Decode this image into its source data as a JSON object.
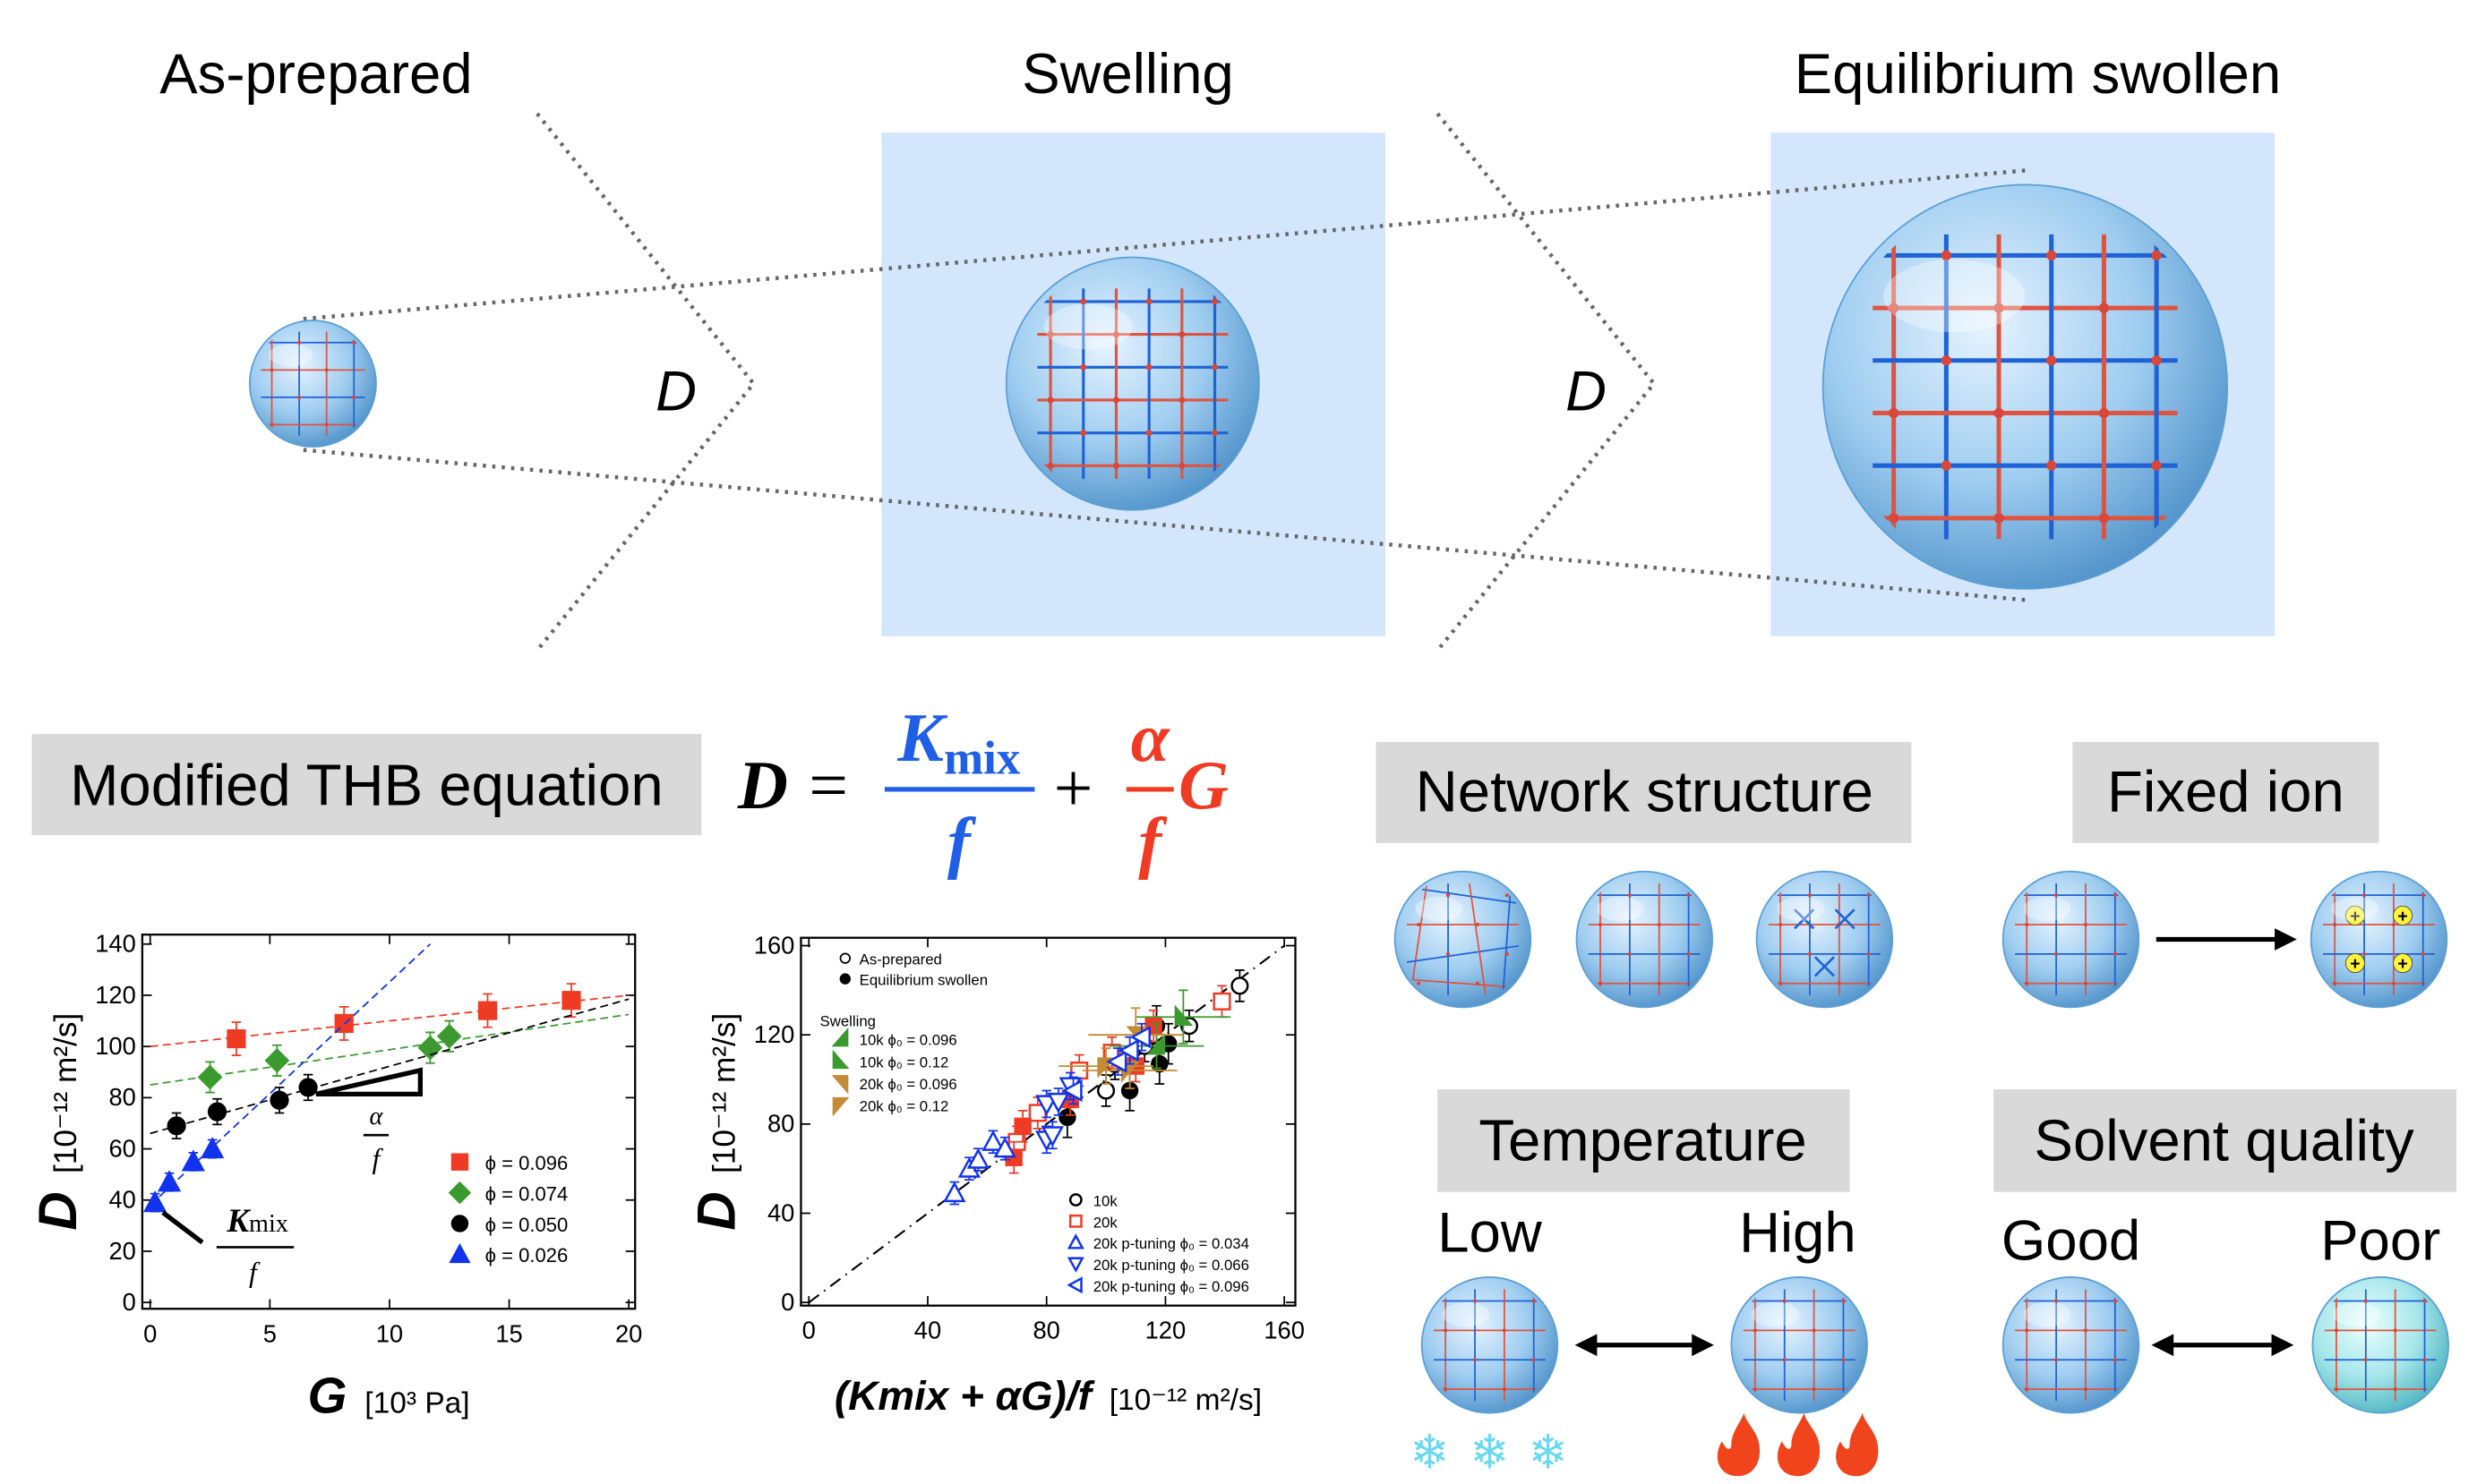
{
  "stages": [
    "As-prepared",
    "Swelling",
    "Equilibrium swollen"
  ],
  "transition_label": "D",
  "equation": {
    "label": "Modified THB equation",
    "lhs": "D",
    "equals": "=",
    "term1_numerator": "K",
    "term1_numerator_sub": "mix",
    "term1_denominator": "f",
    "plus": "+",
    "term2_numerator": "α",
    "term2_denominator": "f",
    "term2_factor": "G"
  },
  "factors": {
    "network": "Network structure",
    "fixed_ion": "Fixed ion",
    "temperature": {
      "title": "Temperature",
      "low": "Low",
      "high": "High"
    },
    "solvent": {
      "title": "Solvent quality",
      "good": "Good",
      "poor": "Poor"
    }
  },
  "icons": [
    "sphere-network-icon",
    "arrow-right-icon",
    "double-arrow-icon",
    "snowflake-icon",
    "flame-icon",
    "plus-ion-icon"
  ],
  "colors": {
    "kmix_blue": "#1f5fe6",
    "alpha_red": "#ef3b24",
    "box_gray": "#d9d9d9",
    "panel_blue": "#d3e6fb"
  },
  "symbols": {
    "snowflake": "❄",
    "flame": "🔥",
    "plus": "+"
  },
  "chart_data": [
    {
      "type": "scatter",
      "xlabel": "G",
      "xunit": "[10³ Pa]",
      "ylabel": "D",
      "yunit": "[10⁻¹² m²/s]",
      "xlim": [
        0,
        20
      ],
      "ylim": [
        0,
        140
      ],
      "xticks": [
        "0",
        "5",
        "10",
        "15",
        "20"
      ],
      "yticks": [
        "0",
        "20",
        "40",
        "60",
        "80",
        "100",
        "120",
        "140"
      ],
      "grid": false,
      "legend_position": "bottom-right",
      "annotations": {
        "slope_num": "α",
        "slope_den": "f",
        "intercept_num": "K",
        "intercept_num_sub": "mix",
        "intercept_den": "f"
      },
      "series": [
        {
          "name": "ϕ = 0.096",
          "color": "#ef3b24",
          "marker": "square",
          "filled": true,
          "yerr": 6.5,
          "x": [
            3.6,
            8.1,
            14.1,
            17.6
          ],
          "y": [
            103,
            109,
            114,
            118
          ],
          "fit": [
            [
              0,
              100
            ],
            [
              20,
              120
            ]
          ]
        },
        {
          "name": "ϕ = 0.074",
          "color": "#3a9a2e",
          "marker": "diamond",
          "filled": true,
          "yerr": 6,
          "x": [
            2.5,
            5.3,
            11.7,
            12.5
          ],
          "y": [
            88,
            94.5,
            99.5,
            104
          ],
          "fit": [
            [
              0,
              85
            ],
            [
              20,
              112.5
            ]
          ]
        },
        {
          "name": "ϕ = 0.050",
          "color": "#000000",
          "marker": "circle",
          "filled": true,
          "yerr": 5,
          "x": [
            1.1,
            2.8,
            5.4,
            6.6
          ],
          "y": [
            69,
            74.5,
            79,
            84
          ],
          "fit": [
            [
              0,
              66
            ],
            [
              20,
              118.5
            ]
          ]
        },
        {
          "name": "ϕ = 0.026",
          "color": "#1133ee",
          "marker": "triangle-up",
          "filled": true,
          "yerr": 3.5,
          "x": [
            0.2,
            0.8,
            1.8,
            2.6
          ],
          "y": [
            39,
            47,
            55,
            60
          ],
          "fit": [
            [
              0,
              38
            ],
            [
              11.7,
              140
            ]
          ]
        }
      ]
    },
    {
      "type": "scatter",
      "xlabel": "(Kmix + αG)/f",
      "xunit": "[10⁻¹² m²/s]",
      "ylabel": "D",
      "yunit": "[10⁻¹² m²/s]",
      "xlim": [
        0,
        160
      ],
      "ylim": [
        0,
        160
      ],
      "xticks": [
        "0",
        "40",
        "80",
        "120",
        "160"
      ],
      "yticks": [
        "0",
        "40",
        "80",
        "120",
        "160"
      ],
      "grid": false,
      "reference_line": "y = x",
      "legend_state": [
        "As-prepared",
        "Equilibrium swollen"
      ],
      "legend_swelling_title": "Swelling",
      "series": [
        {
          "name": "10k",
          "group": "As-prepared",
          "color": "#000000",
          "marker": "circle",
          "filled": false,
          "yerr": 7,
          "x": [
            145,
            128,
            100,
            103,
            113
          ],
          "y": [
            142,
            124,
            95,
            107,
            115
          ]
        },
        {
          "name": "10k",
          "group": "Equilibrium swollen",
          "color": "#000000",
          "marker": "circle",
          "filled": true,
          "yerr": 9,
          "x": [
            87,
            108,
            118,
            121,
            117
          ],
          "y": [
            83,
            95,
            107,
            116,
            124
          ]
        },
        {
          "name": "20k",
          "group": "As-prepared",
          "color": "#ef3b24",
          "marker": "square",
          "filled": false,
          "yerr": 7,
          "x": [
            139,
            91,
            102,
            77,
            70
          ],
          "y": [
            135,
            104,
            112,
            85,
            72
          ]
        },
        {
          "name": "20k",
          "group": "Equilibrium swollen",
          "color": "#ef3b24",
          "marker": "square",
          "filled": true,
          "yerr": 7,
          "x": [
            72,
            69,
            110,
            116,
            88
          ],
          "y": [
            79,
            65,
            106,
            124,
            91
          ]
        },
        {
          "name": "10k ϕ₀ = 0.096",
          "group": "Swelling",
          "color": "#3a9a2e",
          "marker": "wedge-ur",
          "filled": true,
          "yerr": 10,
          "x": [
            117
          ],
          "y": [
            115
          ]
        },
        {
          "name": "10k ϕ₀ = 0.12",
          "group": "Swelling",
          "color": "#3a9a2e",
          "marker": "wedge-ul",
          "filled": true,
          "yerr": 12,
          "x": [
            126
          ],
          "y": [
            128
          ]
        },
        {
          "name": "20k ϕ₀ = 0.096",
          "group": "Swelling",
          "color": "#c48a34",
          "marker": "wedge-dl",
          "filled": true,
          "yerr": 12,
          "x": [
            110
          ],
          "y": [
            120
          ]
        },
        {
          "name": "20k ϕ₀ = 0.12",
          "group": "Swelling",
          "color": "#c48a34",
          "marker": "wedge-dr",
          "filled": true,
          "yerr": 8,
          "x": [
            100,
            108
          ],
          "y": [
            106,
            104
          ]
        },
        {
          "name": "20k p-tuning ϕ₀ = 0.034",
          "color": "#1133ee",
          "marker": "triangle-up",
          "filled": false,
          "yerr": 5,
          "x": [
            49,
            54,
            57,
            62,
            66
          ],
          "y": [
            49,
            60,
            64,
            72,
            69
          ]
        },
        {
          "name": "20k p-tuning ϕ₀ = 0.066",
          "color": "#1133ee",
          "marker": "triangle-down",
          "filled": false,
          "yerr": 6,
          "x": [
            80,
            82,
            80,
            84,
            88
          ],
          "y": [
            73,
            75,
            89,
            90,
            97
          ]
        },
        {
          "name": "20k p-tuning ϕ₀ = 0.096",
          "color": "#1133ee",
          "marker": "triangle-left",
          "filled": false,
          "yerr": 6,
          "x": [
            104,
            108,
            112,
            89
          ],
          "y": [
            108,
            113,
            119,
            95
          ]
        }
      ]
    }
  ]
}
